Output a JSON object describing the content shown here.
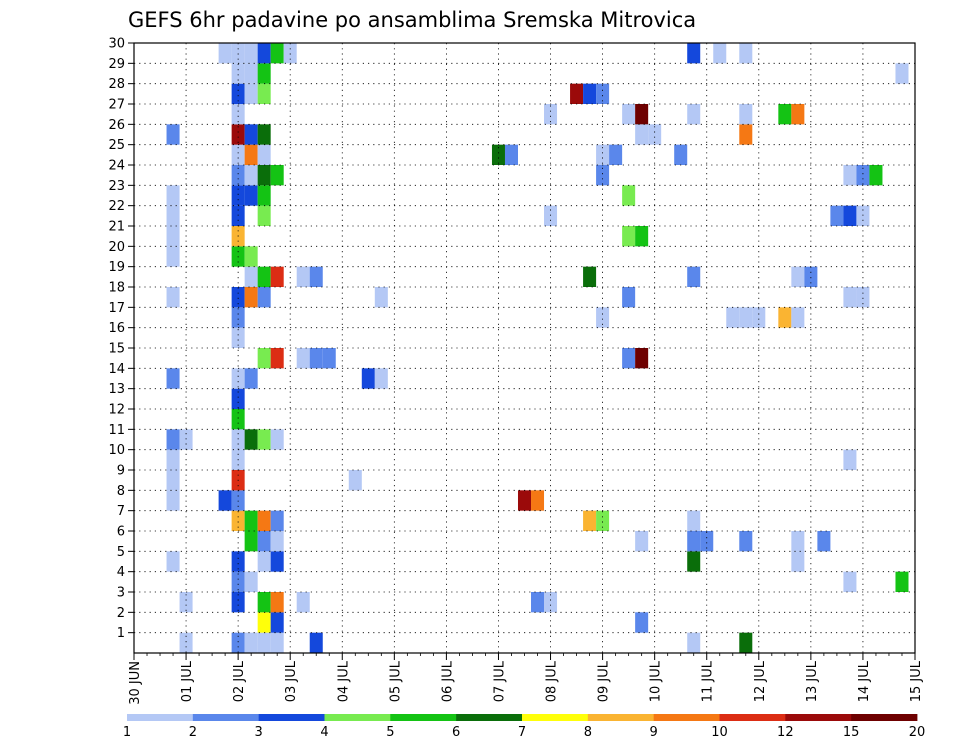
{
  "chart_data": {
    "type": "heatmap",
    "title": "GEFS 6hr padavine po ansamblima Sremska Mitrovica",
    "xlabel": "",
    "ylabel": "",
    "x_ticks": [
      "30 JUN",
      "01 JUL",
      "02 JUL",
      "03 JUL",
      "04 JUL",
      "05 JUL",
      "06 JUL",
      "07 JUL",
      "08 JUL",
      "09 JUL",
      "10 JUL",
      "11 JUL",
      "12 JUL",
      "13 JUL",
      "14 JUL",
      "15 JUL"
    ],
    "x_range_days": [
      0,
      15
    ],
    "y_ticks": [
      1,
      2,
      3,
      4,
      5,
      6,
      7,
      8,
      9,
      10,
      11,
      12,
      13,
      14,
      15,
      16,
      17,
      18,
      19,
      20,
      21,
      22,
      23,
      24,
      25,
      26,
      27,
      28,
      29,
      30
    ],
    "y_range": [
      0,
      30
    ],
    "grid": true,
    "legend_position": "bottom",
    "colorbar": {
      "labels": [
        "1",
        "2",
        "3",
        "4",
        "5",
        "6",
        "7",
        "8",
        "9",
        "10",
        "12",
        "15",
        "20"
      ],
      "colors": [
        "#b4c8f5",
        "#5a87eb",
        "#1448dc",
        "#78eb50",
        "#14c314",
        "#0a6e0a",
        "#ffff0a",
        "#fab432",
        "#f57814",
        "#dc2d14",
        "#9b0a0a",
        "#6e0000"
      ]
    },
    "cells": [
      {
        "member": 0,
        "day": 1.0,
        "level": 0
      },
      {
        "member": 0,
        "day": 2.0,
        "level": 1
      },
      {
        "member": 0,
        "day": 2.25,
        "level": 0
      },
      {
        "member": 0,
        "day": 2.5,
        "level": 0
      },
      {
        "member": 0,
        "day": 2.75,
        "level": 0
      },
      {
        "member": 0,
        "day": 3.5,
        "level": 2
      },
      {
        "member": 0,
        "day": 10.75,
        "level": 0
      },
      {
        "member": 0,
        "day": 11.75,
        "level": 5
      },
      {
        "member": 1,
        "day": 2.5,
        "level": 6
      },
      {
        "member": 1,
        "day": 2.75,
        "level": 2
      },
      {
        "member": 1,
        "day": 9.75,
        "level": 1
      },
      {
        "member": 2,
        "day": 1.0,
        "level": 0
      },
      {
        "member": 2,
        "day": 2.0,
        "level": 2
      },
      {
        "member": 2,
        "day": 2.5,
        "level": 4
      },
      {
        "member": 2,
        "day": 2.75,
        "level": 8
      },
      {
        "member": 2,
        "day": 3.25,
        "level": 0
      },
      {
        "member": 2,
        "day": 7.75,
        "level": 1
      },
      {
        "member": 2,
        "day": 8.0,
        "level": 0
      },
      {
        "member": 3,
        "day": 2.0,
        "level": 1
      },
      {
        "member": 3,
        "day": 2.25,
        "level": 0
      },
      {
        "member": 3,
        "day": 13.75,
        "level": 0
      },
      {
        "member": 3,
        "day": 14.75,
        "level": 4
      },
      {
        "member": 4,
        "day": 0.75,
        "level": 0
      },
      {
        "member": 4,
        "day": 2.0,
        "level": 2
      },
      {
        "member": 4,
        "day": 2.5,
        "level": 0
      },
      {
        "member": 4,
        "day": 2.75,
        "level": 2
      },
      {
        "member": 4,
        "day": 10.75,
        "level": 5
      },
      {
        "member": 4,
        "day": 12.75,
        "level": 0
      },
      {
        "member": 5,
        "day": 2.25,
        "level": 4
      },
      {
        "member": 5,
        "day": 2.5,
        "level": 1
      },
      {
        "member": 5,
        "day": 2.75,
        "level": 0
      },
      {
        "member": 5,
        "day": 9.75,
        "level": 0
      },
      {
        "member": 5,
        "day": 10.75,
        "level": 1
      },
      {
        "member": 5,
        "day": 11.0,
        "level": 1
      },
      {
        "member": 5,
        "day": 11.75,
        "level": 1
      },
      {
        "member": 5,
        "day": 12.75,
        "level": 0
      },
      {
        "member": 5,
        "day": 13.25,
        "level": 1
      },
      {
        "member": 6,
        "day": 2.0,
        "level": 7
      },
      {
        "member": 6,
        "day": 2.25,
        "level": 4
      },
      {
        "member": 6,
        "day": 2.5,
        "level": 8
      },
      {
        "member": 6,
        "day": 2.75,
        "level": 1
      },
      {
        "member": 6,
        "day": 8.75,
        "level": 7
      },
      {
        "member": 6,
        "day": 9.0,
        "level": 3
      },
      {
        "member": 6,
        "day": 10.75,
        "level": 0
      },
      {
        "member": 7,
        "day": 0.75,
        "level": 0
      },
      {
        "member": 7,
        "day": 1.75,
        "level": 2
      },
      {
        "member": 7,
        "day": 2.0,
        "level": 1
      },
      {
        "member": 7,
        "day": 7.5,
        "level": 10
      },
      {
        "member": 7,
        "day": 7.75,
        "level": 8
      },
      {
        "member": 8,
        "day": 0.75,
        "level": 0
      },
      {
        "member": 8,
        "day": 2.0,
        "level": 9
      },
      {
        "member": 8,
        "day": 4.25,
        "level": 0
      },
      {
        "member": 9,
        "day": 0.75,
        "level": 0
      },
      {
        "member": 9,
        "day": 2.0,
        "level": 0
      },
      {
        "member": 9,
        "day": 13.75,
        "level": 0
      },
      {
        "member": 10,
        "day": 0.75,
        "level": 1
      },
      {
        "member": 10,
        "day": 1.0,
        "level": 0
      },
      {
        "member": 10,
        "day": 2.0,
        "level": 0
      },
      {
        "member": 10,
        "day": 2.25,
        "level": 5
      },
      {
        "member": 10,
        "day": 2.5,
        "level": 3
      },
      {
        "member": 10,
        "day": 2.75,
        "level": 0
      },
      {
        "member": 11,
        "day": 2.0,
        "level": 4
      },
      {
        "member": 12,
        "day": 2.0,
        "level": 2
      },
      {
        "member": 13,
        "day": 0.75,
        "level": 1
      },
      {
        "member": 13,
        "day": 2.0,
        "level": 0
      },
      {
        "member": 13,
        "day": 2.25,
        "level": 1
      },
      {
        "member": 13,
        "day": 4.5,
        "level": 2
      },
      {
        "member": 13,
        "day": 4.75,
        "level": 0
      },
      {
        "member": 14,
        "day": 2.5,
        "level": 3
      },
      {
        "member": 14,
        "day": 2.75,
        "level": 9
      },
      {
        "member": 14,
        "day": 3.25,
        "level": 0
      },
      {
        "member": 14,
        "day": 3.5,
        "level": 1
      },
      {
        "member": 14,
        "day": 3.75,
        "level": 1
      },
      {
        "member": 14,
        "day": 9.5,
        "level": 1
      },
      {
        "member": 14,
        "day": 9.75,
        "level": 11
      },
      {
        "member": 15,
        "day": 2.0,
        "level": 0
      },
      {
        "member": 16,
        "day": 2.0,
        "level": 1
      },
      {
        "member": 16,
        "day": 9.0,
        "level": 0
      },
      {
        "member": 16,
        "day": 11.5,
        "level": 0
      },
      {
        "member": 16,
        "day": 11.75,
        "level": 0
      },
      {
        "member": 16,
        "day": 12.0,
        "level": 0
      },
      {
        "member": 16,
        "day": 12.5,
        "level": 7
      },
      {
        "member": 16,
        "day": 12.75,
        "level": 0
      },
      {
        "member": 17,
        "day": 0.75,
        "level": 0
      },
      {
        "member": 17,
        "day": 2.0,
        "level": 2
      },
      {
        "member": 17,
        "day": 2.25,
        "level": 8
      },
      {
        "member": 17,
        "day": 2.5,
        "level": 1
      },
      {
        "member": 17,
        "day": 4.75,
        "level": 0
      },
      {
        "member": 17,
        "day": 9.5,
        "level": 1
      },
      {
        "member": 17,
        "day": 13.75,
        "level": 0
      },
      {
        "member": 17,
        "day": 14.0,
        "level": 0
      },
      {
        "member": 18,
        "day": 2.25,
        "level": 0
      },
      {
        "member": 18,
        "day": 2.5,
        "level": 4
      },
      {
        "member": 18,
        "day": 2.75,
        "level": 9
      },
      {
        "member": 18,
        "day": 3.25,
        "level": 0
      },
      {
        "member": 18,
        "day": 3.5,
        "level": 1
      },
      {
        "member": 18,
        "day": 8.75,
        "level": 5
      },
      {
        "member": 18,
        "day": 10.75,
        "level": 1
      },
      {
        "member": 18,
        "day": 12.75,
        "level": 0
      },
      {
        "member": 18,
        "day": 13.0,
        "level": 1
      },
      {
        "member": 19,
        "day": 0.75,
        "level": 0
      },
      {
        "member": 19,
        "day": 2.0,
        "level": 4
      },
      {
        "member": 19,
        "day": 2.25,
        "level": 3
      },
      {
        "member": 20,
        "day": 0.75,
        "level": 0
      },
      {
        "member": 20,
        "day": 2.0,
        "level": 7
      },
      {
        "member": 20,
        "day": 9.5,
        "level": 3
      },
      {
        "member": 20,
        "day": 9.75,
        "level": 4
      },
      {
        "member": 21,
        "day": 0.75,
        "level": 0
      },
      {
        "member": 21,
        "day": 2.0,
        "level": 2
      },
      {
        "member": 21,
        "day": 2.5,
        "level": 3
      },
      {
        "member": 21,
        "day": 8.0,
        "level": 0
      },
      {
        "member": 21,
        "day": 13.5,
        "level": 1
      },
      {
        "member": 21,
        "day": 13.75,
        "level": 2
      },
      {
        "member": 21,
        "day": 14.0,
        "level": 0
      },
      {
        "member": 22,
        "day": 0.75,
        "level": 0
      },
      {
        "member": 22,
        "day": 2.0,
        "level": 2
      },
      {
        "member": 22,
        "day": 2.25,
        "level": 2
      },
      {
        "member": 22,
        "day": 2.5,
        "level": 4
      },
      {
        "member": 22,
        "day": 9.5,
        "level": 3
      },
      {
        "member": 23,
        "day": 2.0,
        "level": 1
      },
      {
        "member": 23,
        "day": 2.25,
        "level": 0
      },
      {
        "member": 23,
        "day": 2.5,
        "level": 5
      },
      {
        "member": 23,
        "day": 2.75,
        "level": 4
      },
      {
        "member": 23,
        "day": 9.0,
        "level": 1
      },
      {
        "member": 23,
        "day": 13.75,
        "level": 0
      },
      {
        "member": 23,
        "day": 14.0,
        "level": 1
      },
      {
        "member": 23,
        "day": 14.25,
        "level": 4
      },
      {
        "member": 24,
        "day": 2.0,
        "level": 0
      },
      {
        "member": 24,
        "day": 2.25,
        "level": 8
      },
      {
        "member": 24,
        "day": 2.5,
        "level": 0
      },
      {
        "member": 24,
        "day": 7.0,
        "level": 5
      },
      {
        "member": 24,
        "day": 7.25,
        "level": 1
      },
      {
        "member": 24,
        "day": 9.0,
        "level": 0
      },
      {
        "member": 24,
        "day": 9.25,
        "level": 1
      },
      {
        "member": 24,
        "day": 10.5,
        "level": 1
      },
      {
        "member": 25,
        "day": 0.75,
        "level": 1
      },
      {
        "member": 25,
        "day": 2.0,
        "level": 10
      },
      {
        "member": 25,
        "day": 2.25,
        "level": 2
      },
      {
        "member": 25,
        "day": 2.5,
        "level": 5
      },
      {
        "member": 25,
        "day": 9.75,
        "level": 0
      },
      {
        "member": 25,
        "day": 10.0,
        "level": 0
      },
      {
        "member": 25,
        "day": 11.75,
        "level": 8
      },
      {
        "member": 26,
        "day": 2.0,
        "level": 0
      },
      {
        "member": 26,
        "day": 8.0,
        "level": 0
      },
      {
        "member": 26,
        "day": 9.5,
        "level": 0
      },
      {
        "member": 26,
        "day": 9.75,
        "level": 11
      },
      {
        "member": 26,
        "day": 10.75,
        "level": 0
      },
      {
        "member": 26,
        "day": 11.75,
        "level": 0
      },
      {
        "member": 26,
        "day": 12.5,
        "level": 4
      },
      {
        "member": 26,
        "day": 12.75,
        "level": 8
      },
      {
        "member": 27,
        "day": 2.0,
        "level": 2
      },
      {
        "member": 27,
        "day": 2.25,
        "level": 0
      },
      {
        "member": 27,
        "day": 2.5,
        "level": 3
      },
      {
        "member": 27,
        "day": 8.5,
        "level": 10
      },
      {
        "member": 27,
        "day": 8.75,
        "level": 2
      },
      {
        "member": 27,
        "day": 9.0,
        "level": 1
      },
      {
        "member": 28,
        "day": 2.0,
        "level": 0
      },
      {
        "member": 28,
        "day": 2.25,
        "level": 0
      },
      {
        "member": 28,
        "day": 2.5,
        "level": 4
      },
      {
        "member": 28,
        "day": 14.75,
        "level": 0
      },
      {
        "member": 29,
        "day": 1.75,
        "level": 0
      },
      {
        "member": 29,
        "day": 2.0,
        "level": 0
      },
      {
        "member": 29,
        "day": 2.25,
        "level": 0
      },
      {
        "member": 29,
        "day": 2.5,
        "level": 2
      },
      {
        "member": 29,
        "day": 2.75,
        "level": 4
      },
      {
        "member": 29,
        "day": 3.0,
        "level": 0
      },
      {
        "member": 29,
        "day": 10.75,
        "level": 2
      },
      {
        "member": 29,
        "day": 11.25,
        "level": 0
      },
      {
        "member": 29,
        "day": 11.75,
        "level": 0
      }
    ]
  }
}
